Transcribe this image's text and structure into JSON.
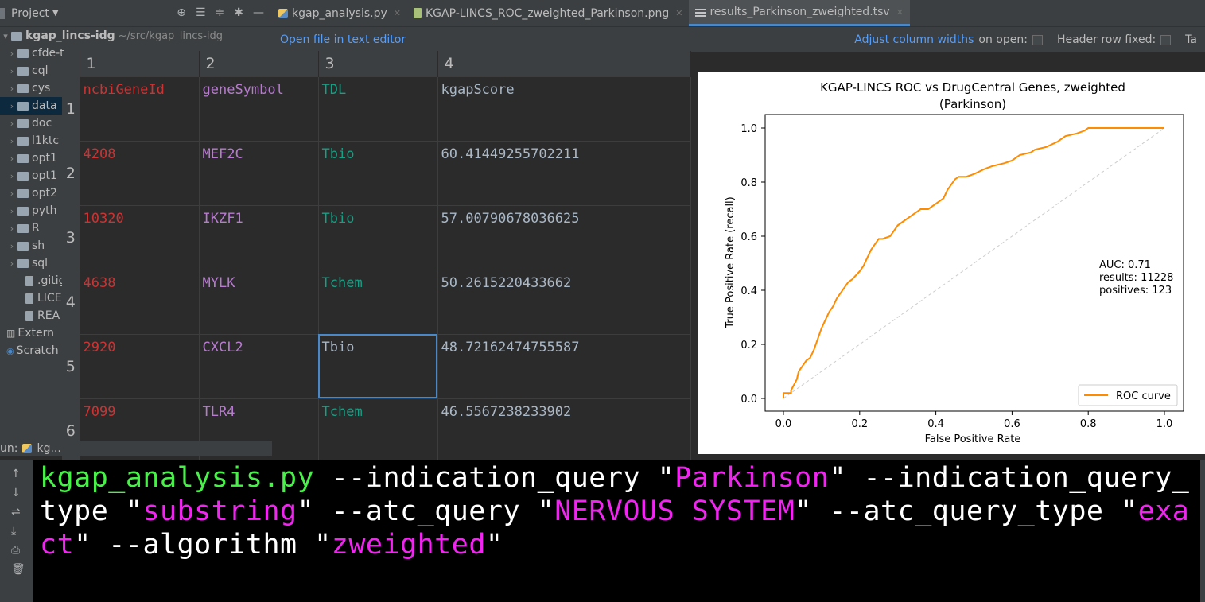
{
  "project_panel": {
    "title": "Project",
    "root_name": "kgap_lincs-idg",
    "root_path": "~/src/kgap_lincs-idg",
    "items": [
      {
        "label": "cfde-t..",
        "type": "folder"
      },
      {
        "label": "cql",
        "type": "folder"
      },
      {
        "label": "cys",
        "type": "folder"
      },
      {
        "label": "data",
        "type": "folder",
        "selected": true
      },
      {
        "label": "doc",
        "type": "folder"
      },
      {
        "label": "l1ktc",
        "type": "folder"
      },
      {
        "label": "opt1",
        "type": "folder"
      },
      {
        "label": "opt1",
        "type": "folder"
      },
      {
        "label": "opt2",
        "type": "folder"
      },
      {
        "label": "pyth",
        "type": "folder"
      },
      {
        "label": "R",
        "type": "folder"
      },
      {
        "label": "sh",
        "type": "folder"
      },
      {
        "label": "sql",
        "type": "folder"
      },
      {
        "label": ".gitig",
        "type": "file"
      },
      {
        "label": "LICE",
        "type": "file"
      },
      {
        "label": "REA",
        "type": "file"
      },
      {
        "label": "Extern",
        "type": "extern"
      },
      {
        "label": "Scratch",
        "type": "scratch"
      }
    ]
  },
  "tabs": [
    {
      "label": "kgap_analysis.py",
      "icon": "python-file-icon"
    },
    {
      "label": "KGAP-LINCS_ROC_zweighted_Parkinson.png",
      "icon": "image-file-icon"
    },
    {
      "label": "results_Parkinson_zweighted.tsv",
      "icon": "tsv-file-icon",
      "active": true
    }
  ],
  "editor_bar": {
    "open_in_text_editor": "Open file in text editor",
    "adjust_widths": "Adjust column widths",
    "on_open": "on open:",
    "header_fixed": "Header row fixed:",
    "tail": "Ta"
  },
  "table": {
    "columns": [
      "1",
      "2",
      "3",
      "4"
    ],
    "row_numbers": [
      "1",
      "2",
      "3",
      "4",
      "5",
      "6"
    ],
    "rows": [
      [
        "ncbiGeneId",
        "geneSymbol",
        "TDL",
        "kgapScore"
      ],
      [
        "4208",
        "MEF2C",
        "Tbio",
        "60.41449255702211"
      ],
      [
        "10320",
        "IKZF1",
        "Tbio",
        "57.00790678036625"
      ],
      [
        "4638",
        "MYLK",
        "Tchem",
        "50.2615220433662"
      ],
      [
        "2920",
        "CXCL2",
        "Tbio",
        "48.72162474755587"
      ],
      [
        "7099",
        "TLR4",
        "Tchem",
        "46.5567238233902"
      ]
    ]
  },
  "chart_data": {
    "type": "line",
    "title": "KGAP-LINCS ROC vs DrugCentral Genes, zweighted",
    "subtitle": "(Parkinson)",
    "xlabel": "False Positive Rate",
    "ylabel": "True Positive Rate (recall)",
    "xlim": [
      0.0,
      1.0
    ],
    "ylim": [
      0.0,
      1.0
    ],
    "xticks": [
      "0.0",
      "0.2",
      "0.4",
      "0.6",
      "0.8",
      "1.0"
    ],
    "yticks": [
      "0.0",
      "0.2",
      "0.4",
      "0.6",
      "0.8",
      "1.0"
    ],
    "annotation": [
      "AUC: 0.71",
      "results: 11228",
      "positives: 123"
    ],
    "legend": "ROC curve",
    "legend_position": "lower right",
    "series": [
      {
        "name": "ROC curve",
        "color": "#ff8c00",
        "x": [
          0.0,
          0.0,
          0.02,
          0.02,
          0.035,
          0.04,
          0.05,
          0.06,
          0.07,
          0.08,
          0.09,
          0.1,
          0.11,
          0.12,
          0.13,
          0.14,
          0.15,
          0.16,
          0.17,
          0.18,
          0.2,
          0.21,
          0.22,
          0.23,
          0.24,
          0.25,
          0.26,
          0.28,
          0.29,
          0.3,
          0.31,
          0.33,
          0.35,
          0.36,
          0.38,
          0.41,
          0.42,
          0.43,
          0.45,
          0.46,
          0.48,
          0.5,
          0.53,
          0.55,
          0.58,
          0.6,
          0.62,
          0.65,
          0.66,
          0.69,
          0.72,
          0.74,
          0.77,
          0.79,
          0.8,
          0.82,
          0.85,
          1.0
        ],
        "y": [
          0.0,
          0.02,
          0.02,
          0.03,
          0.07,
          0.1,
          0.12,
          0.14,
          0.15,
          0.18,
          0.22,
          0.26,
          0.29,
          0.32,
          0.34,
          0.37,
          0.39,
          0.41,
          0.43,
          0.44,
          0.47,
          0.49,
          0.52,
          0.55,
          0.57,
          0.59,
          0.59,
          0.6,
          0.62,
          0.64,
          0.65,
          0.67,
          0.69,
          0.7,
          0.7,
          0.73,
          0.74,
          0.77,
          0.81,
          0.82,
          0.82,
          0.83,
          0.85,
          0.86,
          0.87,
          0.88,
          0.9,
          0.91,
          0.92,
          0.93,
          0.95,
          0.97,
          0.98,
          0.99,
          1.0,
          1.0,
          1.0,
          1.0
        ]
      },
      {
        "name": "chance",
        "color": "#cccccc",
        "style": "dashed",
        "x": [
          0.0,
          1.0
        ],
        "y": [
          0.0,
          1.0
        ]
      }
    ]
  },
  "run_bar": {
    "label": "un:",
    "config": "kg..."
  },
  "terminal": {
    "segments": [
      {
        "text": "kgap_analysis.py",
        "color": "green"
      },
      {
        "text": " --indication_query ",
        "color": "white"
      },
      {
        "text": "\"",
        "color": "white"
      },
      {
        "text": "Parkinson",
        "color": "magenta"
      },
      {
        "text": "\" --indication_query_type ",
        "color": "white"
      },
      {
        "text": "\"",
        "color": "white"
      },
      {
        "text": "substring",
        "color": "magenta"
      },
      {
        "text": "\" --atc_query ",
        "color": "white"
      },
      {
        "text": "\"",
        "color": "white"
      },
      {
        "text": "NERVOUS SYSTEM",
        "color": "magenta"
      },
      {
        "text": "\" --atc_query_type ",
        "color": "white"
      },
      {
        "text": "\"",
        "color": "white"
      },
      {
        "text": "exact",
        "color": "magenta"
      },
      {
        "text": "\" --algorithm ",
        "color": "white"
      },
      {
        "text": "\"",
        "color": "white"
      },
      {
        "text": "zweighted",
        "color": "magenta"
      },
      {
        "text": "\"",
        "color": "white"
      }
    ]
  }
}
